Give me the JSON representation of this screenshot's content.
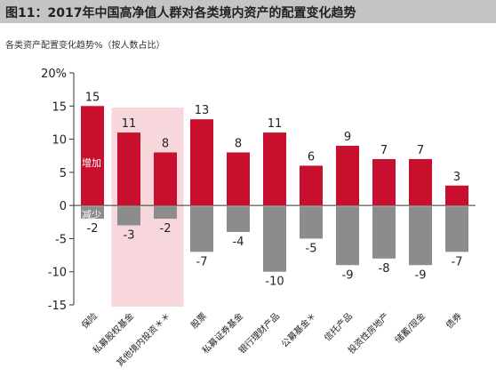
{
  "header": {
    "title": "图11：2017年中国高净值人群对各类境内资产的配置变化趋势"
  },
  "subtitle": "各类资产配置变化趋势%（按人数占比）",
  "colors": {
    "increase": "#c8102e",
    "decrease": "#8c8c8c",
    "highlight": "#f8d7dc"
  },
  "chart_data": {
    "type": "bar",
    "title": "2017年中国高净值人群对各类境内资产的配置变化趋势",
    "ylabel": "各类资产配置变化趋势%（按人数占比）",
    "ylim": [
      -15,
      20
    ],
    "yticks": [
      "20%",
      "15",
      "10",
      "5",
      "0",
      "-5",
      "-10",
      "-15"
    ],
    "yticks_values": [
      20,
      15,
      10,
      5,
      0,
      -5,
      -10,
      -15
    ],
    "categories": [
      "保险",
      "私募股权基金",
      "其他境内投资＊＊",
      "股票",
      "私募证券基金",
      "银行理财产品",
      "公募基金＊",
      "信托产品",
      "投资性房地产",
      "储蓄/现金",
      "债券"
    ],
    "series": [
      {
        "name": "增加",
        "values": [
          15,
          11,
          8,
          13,
          8,
          11,
          6,
          9,
          7,
          7,
          3
        ]
      },
      {
        "name": "减少",
        "values": [
          -2,
          -3,
          -2,
          -7,
          -4,
          -10,
          -5,
          -9,
          -8,
          -9,
          -7
        ]
      }
    ],
    "labels": {
      "increase": [
        "15",
        "11",
        "8",
        "13",
        "8",
        "11",
        "6",
        "9",
        "7",
        "7",
        "3"
      ],
      "decrease": [
        "-2",
        "-3",
        "-2",
        "-7",
        "-4",
        "-10",
        "-5",
        "-9",
        "-8",
        "-9",
        "-7"
      ]
    },
    "highlight_categories": [
      "私募股权基金",
      "其他境内投资＊＊"
    ],
    "grid": false,
    "legend": "inside-left"
  }
}
